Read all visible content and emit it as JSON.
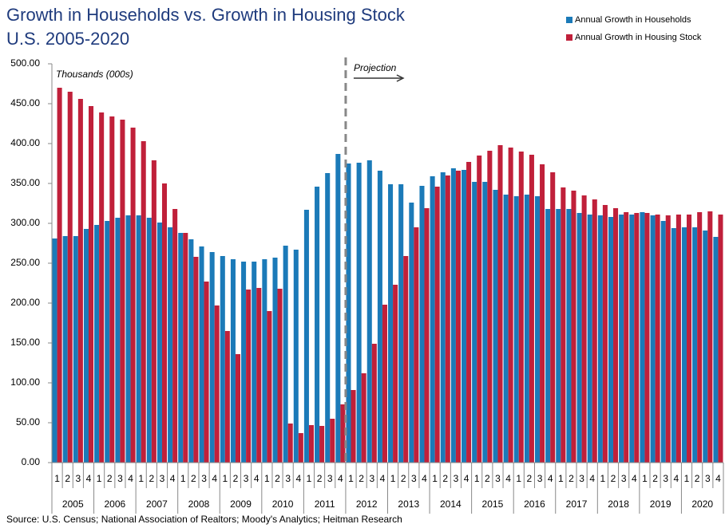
{
  "chart_data": {
    "type": "bar",
    "title": "Growth in Households vs. Growth in Housing Stock",
    "subtitle": "U.S.  2005-2020",
    "unit_label": "Thousands (000s)",
    "projection": {
      "text": "Projection",
      "from": "2012"
    },
    "source": "Source: U.S. Census; National Association of Realtors; Moody's Analytics; Heitman Research",
    "categories": [
      "1",
      "2",
      "3",
      "4",
      "1",
      "2",
      "3",
      "4",
      "1",
      "2",
      "3",
      "4",
      "1",
      "2",
      "3",
      "4",
      "1",
      "2",
      "3",
      "4",
      "1",
      "2",
      "3",
      "4",
      "1",
      "2",
      "3",
      "4",
      "1",
      "2",
      "3",
      "4",
      "1",
      "2",
      "3",
      "4",
      "1",
      "2",
      "3",
      "4",
      "1",
      "2",
      "3",
      "4",
      "1",
      "2",
      "3",
      "4",
      "1",
      "2",
      "3",
      "4",
      "1",
      "2",
      "3",
      "4",
      "1",
      "2",
      "3",
      "4",
      "1",
      "2",
      "3",
      "4"
    ],
    "category_groups": [
      "2005",
      "2006",
      "2007",
      "2008",
      "2009",
      "2010",
      "2011",
      "2012",
      "2013",
      "2014",
      "2015",
      "2016",
      "2017",
      "2018",
      "2019",
      "2020"
    ],
    "series": [
      {
        "name": "Annual Growth in Households",
        "color": "#1b7ab8",
        "values": [
          281,
          284,
          284,
          293,
          298,
          303,
          307,
          310,
          310,
          307,
          301,
          295,
          288,
          280,
          271,
          264,
          259,
          255,
          252,
          252,
          255,
          257,
          272,
          267,
          317,
          346,
          363,
          387,
          375,
          376,
          379,
          366,
          349,
          349,
          326,
          347,
          359,
          364,
          369,
          367,
          352,
          352,
          342,
          336,
          334,
          336,
          334,
          318,
          318,
          318,
          313,
          311,
          310,
          308,
          311,
          311,
          314,
          310,
          303,
          294,
          295,
          295,
          291,
          283
        ]
      },
      {
        "name": "Annual Growth in Housing Stock",
        "color": "#c0203a",
        "values": [
          470,
          465,
          456,
          447,
          439,
          434,
          430,
          420,
          403,
          379,
          350,
          318,
          288,
          258,
          227,
          197,
          165,
          136,
          217,
          219,
          190,
          218,
          49,
          37,
          47,
          46,
          55,
          73,
          91,
          112,
          149,
          198,
          223,
          259,
          295,
          319,
          346,
          360,
          366,
          377,
          385,
          391,
          398,
          395,
          390,
          386,
          374,
          364,
          345,
          341,
          335,
          330,
          323,
          319,
          314,
          313,
          313,
          311,
          310,
          311,
          311,
          314,
          315,
          311
        ]
      }
    ],
    "ylim": [
      0,
      500
    ],
    "yticks": [
      {
        "value": 0,
        "label": "0.00"
      },
      {
        "value": 50,
        "label": "50.00"
      },
      {
        "value": 100,
        "label": "100.00"
      },
      {
        "value": 150,
        "label": "150.00"
      },
      {
        "value": 200,
        "label": "200.00"
      },
      {
        "value": 250,
        "label": "250.00"
      },
      {
        "value": 300,
        "label": "300.00"
      },
      {
        "value": 350,
        "label": "350.00"
      },
      {
        "value": 400,
        "label": "400.00"
      },
      {
        "value": 450,
        "label": "450.00"
      },
      {
        "value": 500,
        "label": "500.00"
      }
    ],
    "legend": "top-right"
  }
}
